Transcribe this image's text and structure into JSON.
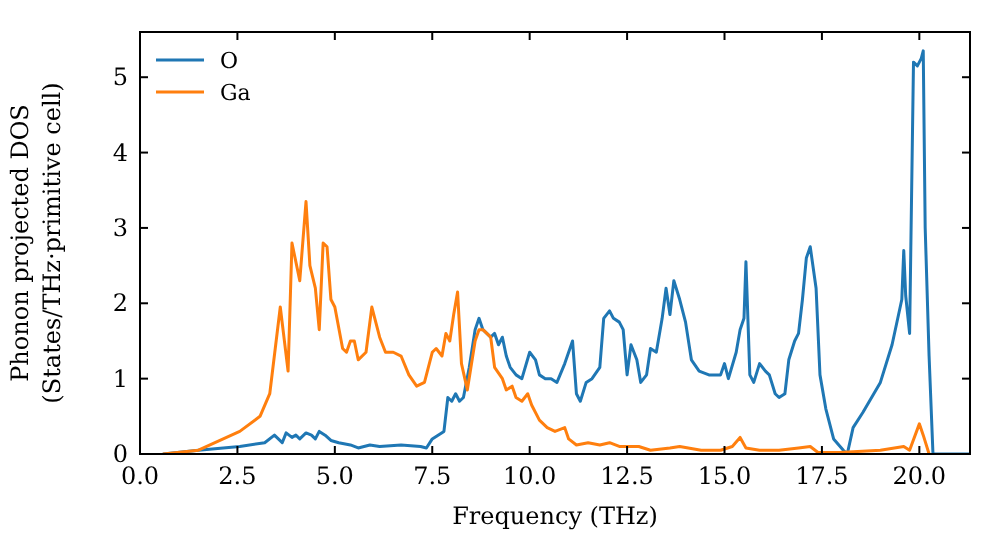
{
  "chart_data": {
    "type": "line",
    "xlabel": "Frequency (THz)",
    "ylabel": "Phonon projected DOS\n(States/THz·primitive cell)",
    "xlim": [
      0,
      21.3
    ],
    "ylim": [
      0,
      5.6
    ],
    "xticks": [
      {
        "value": 0,
        "label": "0.0"
      },
      {
        "value": 2.5,
        "label": "2.5"
      },
      {
        "value": 5,
        "label": "5.0"
      },
      {
        "value": 7.5,
        "label": "7.5"
      },
      {
        "value": 10,
        "label": "10.0"
      },
      {
        "value": 12.5,
        "label": "12.5"
      },
      {
        "value": 15,
        "label": "15.0"
      },
      {
        "value": 17.5,
        "label": "17.5"
      },
      {
        "value": 20,
        "label": "20.0"
      }
    ],
    "yticks": [
      0,
      1,
      2,
      3,
      4,
      5
    ],
    "grid": false,
    "legend": "top left",
    "marker": "none",
    "line_style": "solid",
    "series": [
      {
        "name": "O",
        "color": "#1f77b4",
        "x": [
          0.6,
          1.5,
          2.56,
          3.2,
          3.45,
          3.55,
          3.65,
          3.75,
          3.9,
          4.0,
          4.1,
          4.26,
          4.4,
          4.5,
          4.6,
          4.75,
          4.9,
          5.1,
          5.4,
          5.6,
          5.9,
          6.15,
          6.7,
          7.2,
          7.35,
          7.5,
          7.65,
          7.8,
          7.9,
          8.0,
          8.1,
          8.2,
          8.3,
          8.45,
          8.6,
          8.7,
          8.8,
          9.0,
          9.1,
          9.2,
          9.3,
          9.4,
          9.5,
          9.65,
          9.8,
          10.0,
          10.15,
          10.25,
          10.4,
          10.55,
          10.7,
          10.9,
          11.1,
          11.2,
          11.3,
          11.45,
          11.6,
          11.8,
          11.9,
          12.05,
          12.15,
          12.3,
          12.4,
          12.5,
          12.6,
          12.75,
          12.85,
          13.0,
          13.1,
          13.25,
          13.4,
          13.5,
          13.6,
          13.7,
          13.85,
          14.0,
          14.15,
          14.35,
          14.6,
          14.9,
          15.0,
          15.1,
          15.3,
          15.4,
          15.5,
          15.55,
          15.65,
          15.75,
          15.9,
          16.05,
          16.15,
          16.3,
          16.4,
          16.55,
          16.65,
          16.8,
          16.9,
          17.0,
          17.1,
          17.2,
          17.35,
          17.45,
          17.6,
          17.8,
          18.05,
          18.15,
          18.3,
          18.55,
          19.0,
          19.3,
          19.55,
          19.6,
          19.65,
          19.75,
          19.85,
          19.95,
          20.05,
          20.1,
          20.15,
          20.25,
          20.35,
          21.3
        ],
        "values": [
          0,
          0.05,
          0.1,
          0.15,
          0.25,
          0.2,
          0.15,
          0.28,
          0.22,
          0.25,
          0.2,
          0.28,
          0.25,
          0.2,
          0.3,
          0.25,
          0.18,
          0.15,
          0.12,
          0.08,
          0.12,
          0.1,
          0.12,
          0.1,
          0.08,
          0.2,
          0.25,
          0.3,
          0.75,
          0.7,
          0.8,
          0.7,
          0.75,
          1.15,
          1.65,
          1.8,
          1.65,
          1.55,
          1.6,
          1.45,
          1.55,
          1.3,
          1.15,
          1.05,
          1.0,
          1.35,
          1.25,
          1.05,
          1.0,
          1.0,
          0.95,
          1.2,
          1.5,
          0.8,
          0.7,
          0.95,
          1.0,
          1.15,
          1.8,
          1.9,
          1.8,
          1.75,
          1.65,
          1.05,
          1.45,
          1.25,
          0.95,
          1.05,
          1.4,
          1.35,
          1.8,
          2.2,
          1.85,
          2.3,
          2.05,
          1.75,
          1.25,
          1.1,
          1.05,
          1.05,
          1.2,
          1.0,
          1.35,
          1.65,
          1.8,
          2.55,
          1.05,
          0.95,
          1.2,
          1.1,
          1.05,
          0.8,
          0.75,
          0.8,
          1.25,
          1.5,
          1.6,
          2.05,
          2.6,
          2.75,
          2.2,
          1.05,
          0.6,
          0.2,
          0.05,
          0,
          0.35,
          0.55,
          0.95,
          1.45,
          2.05,
          2.7,
          2.1,
          1.6,
          5.2,
          5.15,
          5.25,
          5.35,
          3.0,
          1.3,
          0,
          0
        ]
      },
      {
        "name": "Ga",
        "color": "#ff7f0e",
        "x": [
          0.6,
          1.5,
          2.56,
          3.08,
          3.33,
          3.6,
          3.8,
          3.9,
          4.1,
          4.26,
          4.36,
          4.5,
          4.6,
          4.7,
          4.8,
          4.9,
          5.0,
          5.2,
          5.3,
          5.4,
          5.5,
          5.6,
          5.8,
          5.95,
          6.15,
          6.3,
          6.5,
          6.7,
          6.9,
          7.1,
          7.3,
          7.5,
          7.6,
          7.75,
          7.85,
          7.95,
          8.05,
          8.15,
          8.25,
          8.4,
          8.6,
          8.7,
          8.8,
          9.0,
          9.1,
          9.3,
          9.4,
          9.55,
          9.65,
          9.8,
          9.95,
          10.05,
          10.25,
          10.45,
          10.65,
          10.9,
          11.0,
          11.2,
          11.5,
          11.8,
          12.05,
          12.3,
          12.8,
          13.1,
          13.6,
          13.85,
          14.4,
          14.9,
          15.2,
          15.4,
          15.55,
          15.9,
          16.4,
          16.9,
          17.2,
          17.4,
          17.95,
          19.0,
          19.6,
          19.75,
          20.0,
          20.1,
          20.25
        ],
        "values": [
          0,
          0.05,
          0.3,
          0.5,
          0.8,
          1.95,
          1.1,
          2.8,
          2.3,
          3.35,
          2.5,
          2.2,
          1.65,
          2.8,
          2.75,
          2.05,
          1.95,
          1.4,
          1.35,
          1.5,
          1.5,
          1.25,
          1.35,
          1.95,
          1.55,
          1.35,
          1.35,
          1.3,
          1.05,
          0.9,
          0.95,
          1.35,
          1.4,
          1.3,
          1.6,
          1.5,
          1.85,
          2.15,
          1.2,
          0.85,
          1.5,
          1.65,
          1.65,
          1.55,
          1.15,
          1.0,
          0.85,
          0.9,
          0.75,
          0.7,
          0.8,
          0.65,
          0.45,
          0.35,
          0.3,
          0.35,
          0.2,
          0.12,
          0.15,
          0.12,
          0.15,
          0.1,
          0.1,
          0.05,
          0.08,
          0.1,
          0.05,
          0.05,
          0.1,
          0.22,
          0.08,
          0.05,
          0.05,
          0.08,
          0.1,
          0.02,
          0.02,
          0.05,
          0.1,
          0.05,
          0.4,
          0.25,
          0
        ]
      }
    ]
  }
}
